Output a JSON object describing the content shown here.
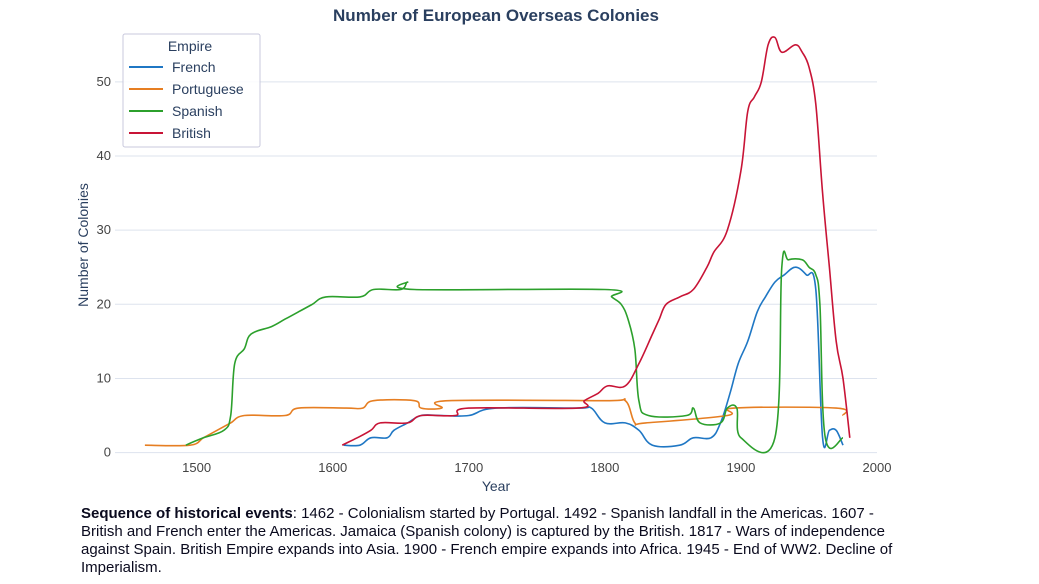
{
  "chart_data": {
    "type": "line",
    "title": "Number of European Overseas Colonies",
    "xlabel": "Year",
    "ylabel": "Number of Colonies",
    "xlim": [
      1440,
      2000
    ],
    "ylim": [
      -1,
      57
    ],
    "xticks": [
      1500,
      1600,
      1700,
      1800,
      1900,
      2000
    ],
    "yticks": [
      0,
      10,
      20,
      30,
      40,
      50
    ],
    "grid": "horizontal",
    "legend": {
      "title": "Empire",
      "position": "top-left"
    },
    "series": [
      {
        "name": "French",
        "color": "#1f77c4",
        "points": [
          [
            1608,
            1
          ],
          [
            1620,
            1
          ],
          [
            1628,
            2
          ],
          [
            1640,
            2
          ],
          [
            1645,
            3
          ],
          [
            1655,
            4
          ],
          [
            1665,
            5
          ],
          [
            1680,
            5
          ],
          [
            1700,
            5
          ],
          [
            1720,
            6
          ],
          [
            1780,
            6
          ],
          [
            1790,
            6
          ],
          [
            1800,
            4
          ],
          [
            1815,
            4
          ],
          [
            1825,
            3
          ],
          [
            1835,
            1
          ],
          [
            1855,
            1
          ],
          [
            1865,
            2
          ],
          [
            1878,
            2
          ],
          [
            1885,
            4
          ],
          [
            1892,
            8
          ],
          [
            1898,
            12
          ],
          [
            1905,
            15
          ],
          [
            1912,
            19
          ],
          [
            1918,
            21
          ],
          [
            1925,
            23
          ],
          [
            1932,
            24
          ],
          [
            1940,
            25
          ],
          [
            1948,
            24
          ],
          [
            1955,
            22
          ],
          [
            1960,
            2
          ],
          [
            1965,
            3
          ],
          [
            1970,
            3
          ],
          [
            1975,
            1
          ]
        ]
      },
      {
        "name": "Portuguese",
        "color": "#e67e22",
        "points": [
          [
            1462,
            1
          ],
          [
            1495,
            1
          ],
          [
            1505,
            2
          ],
          [
            1515,
            3
          ],
          [
            1525,
            4
          ],
          [
            1535,
            5
          ],
          [
            1565,
            5
          ],
          [
            1575,
            6
          ],
          [
            1610,
            6
          ],
          [
            1622,
            6
          ],
          [
            1630,
            7
          ],
          [
            1660,
            7
          ],
          [
            1665,
            6
          ],
          [
            1680,
            6
          ],
          [
            1685,
            7
          ],
          [
            1800,
            7
          ],
          [
            1815,
            7
          ],
          [
            1822,
            4
          ],
          [
            1830,
            4
          ],
          [
            1890,
            5
          ],
          [
            1895,
            6
          ],
          [
            1970,
            6
          ],
          [
            1975,
            5
          ]
        ]
      },
      {
        "name": "Spanish",
        "color": "#2ca02c",
        "points": [
          [
            1492,
            1
          ],
          [
            1505,
            2
          ],
          [
            1520,
            3
          ],
          [
            1525,
            5
          ],
          [
            1528,
            12
          ],
          [
            1535,
            14
          ],
          [
            1540,
            16
          ],
          [
            1555,
            17
          ],
          [
            1565,
            18
          ],
          [
            1575,
            19
          ],
          [
            1585,
            20
          ],
          [
            1595,
            21
          ],
          [
            1620,
            21
          ],
          [
            1630,
            22
          ],
          [
            1650,
            22
          ],
          [
            1655,
            23
          ],
          [
            1660,
            22
          ],
          [
            1800,
            22
          ],
          [
            1805,
            21
          ],
          [
            1812,
            20
          ],
          [
            1817,
            18
          ],
          [
            1822,
            14
          ],
          [
            1825,
            7
          ],
          [
            1832,
            5
          ],
          [
            1860,
            5
          ],
          [
            1865,
            6
          ],
          [
            1870,
            4
          ],
          [
            1885,
            4
          ],
          [
            1890,
            6
          ],
          [
            1897,
            6
          ],
          [
            1900,
            2
          ],
          [
            1925,
            2
          ],
          [
            1930,
            25
          ],
          [
            1935,
            26
          ],
          [
            1945,
            26
          ],
          [
            1950,
            25
          ],
          [
            1955,
            24
          ],
          [
            1958,
            20
          ],
          [
            1962,
            2
          ],
          [
            1975,
            2
          ]
        ]
      },
      {
        "name": "British",
        "color": "#c81436",
        "points": [
          [
            1607,
            1
          ],
          [
            1618,
            2
          ],
          [
            1628,
            3
          ],
          [
            1635,
            4
          ],
          [
            1655,
            4
          ],
          [
            1665,
            5
          ],
          [
            1690,
            5
          ],
          [
            1700,
            6
          ],
          [
            1780,
            6
          ],
          [
            1785,
            7
          ],
          [
            1795,
            8
          ],
          [
            1802,
            9
          ],
          [
            1815,
            9
          ],
          [
            1825,
            12
          ],
          [
            1835,
            16
          ],
          [
            1840,
            18
          ],
          [
            1845,
            20
          ],
          [
            1855,
            21
          ],
          [
            1865,
            22
          ],
          [
            1875,
            25
          ],
          [
            1880,
            27
          ],
          [
            1890,
            30
          ],
          [
            1900,
            38
          ],
          [
            1905,
            46
          ],
          [
            1910,
            48
          ],
          [
            1915,
            50
          ],
          [
            1920,
            55
          ],
          [
            1925,
            56
          ],
          [
            1930,
            54
          ],
          [
            1940,
            55
          ],
          [
            1945,
            54
          ],
          [
            1950,
            52
          ],
          [
            1955,
            47
          ],
          [
            1960,
            35
          ],
          [
            1965,
            25
          ],
          [
            1970,
            15
          ],
          [
            1975,
            10
          ],
          [
            1980,
            2
          ]
        ]
      }
    ],
    "caption": {
      "heading": "Sequence of historical events",
      "text": ": 1462 - Colonialism started by Portugal. 1492 - Spanish landfall in the Americas. 1607 - British and French enter the Americas.  Jamaica (Spanish colony) is captured by the British. 1817 - Wars of independence against Spain. British Empire expands into Asia. 1900 -  French empire expands into Africa. 1945 - End of WW2. Decline of Imperialism."
    }
  }
}
